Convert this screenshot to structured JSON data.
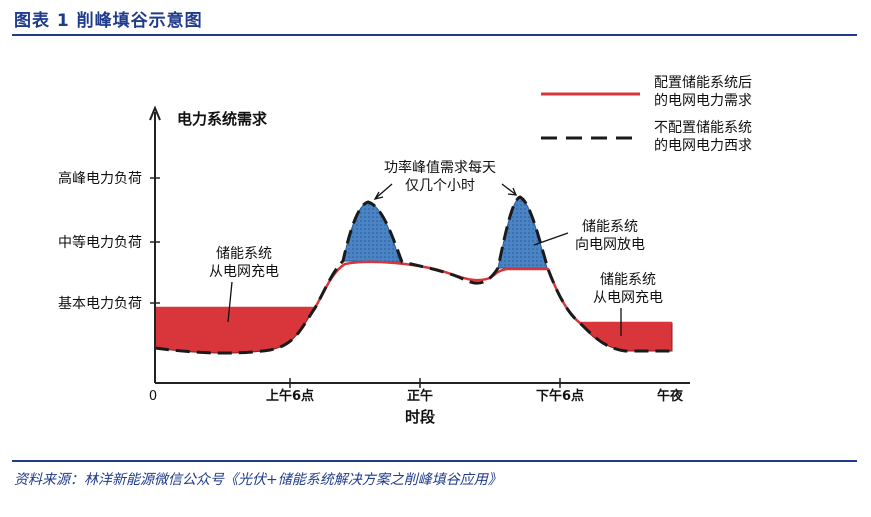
{
  "header": {
    "title": "图表 1   削峰填谷示意图"
  },
  "diagram": {
    "y_axis_title": "电力系统需求",
    "x_axis_title": "时段",
    "y_levels": [
      "高峰电力负荷",
      "中等电力负荷",
      "基本电力负荷"
    ],
    "x_ticks": [
      "0",
      "上午6点",
      "正午",
      "下午6点",
      "午夜"
    ],
    "annotations": {
      "peak_note_line1": "功率峰值需求每天",
      "peak_note_line2": "仅几个小时",
      "charge_left_line1": "储能系统",
      "charge_left_line2": "从电网充电",
      "discharge_line1": "储能系统",
      "discharge_line2": "向电网放电",
      "charge_right_line1": "储能系统",
      "charge_right_line2": "从电网充电"
    },
    "legend": {
      "solid_line1": "配置储能系统后",
      "solid_line2": "的电网电力需求",
      "dashed_line1": "不配置储能系统",
      "dashed_line2": "的电网电力西求"
    },
    "colors": {
      "charge_fill": "#d9363b",
      "discharge_fill": "#4a84c4",
      "solid_line": "#d9363b",
      "dashed_line": "#1a1a1a"
    }
  },
  "footer": {
    "source": "资料来源：林洋新能源微信公众号《光伏+储能系统解决方案之削峰填谷应用》"
  }
}
